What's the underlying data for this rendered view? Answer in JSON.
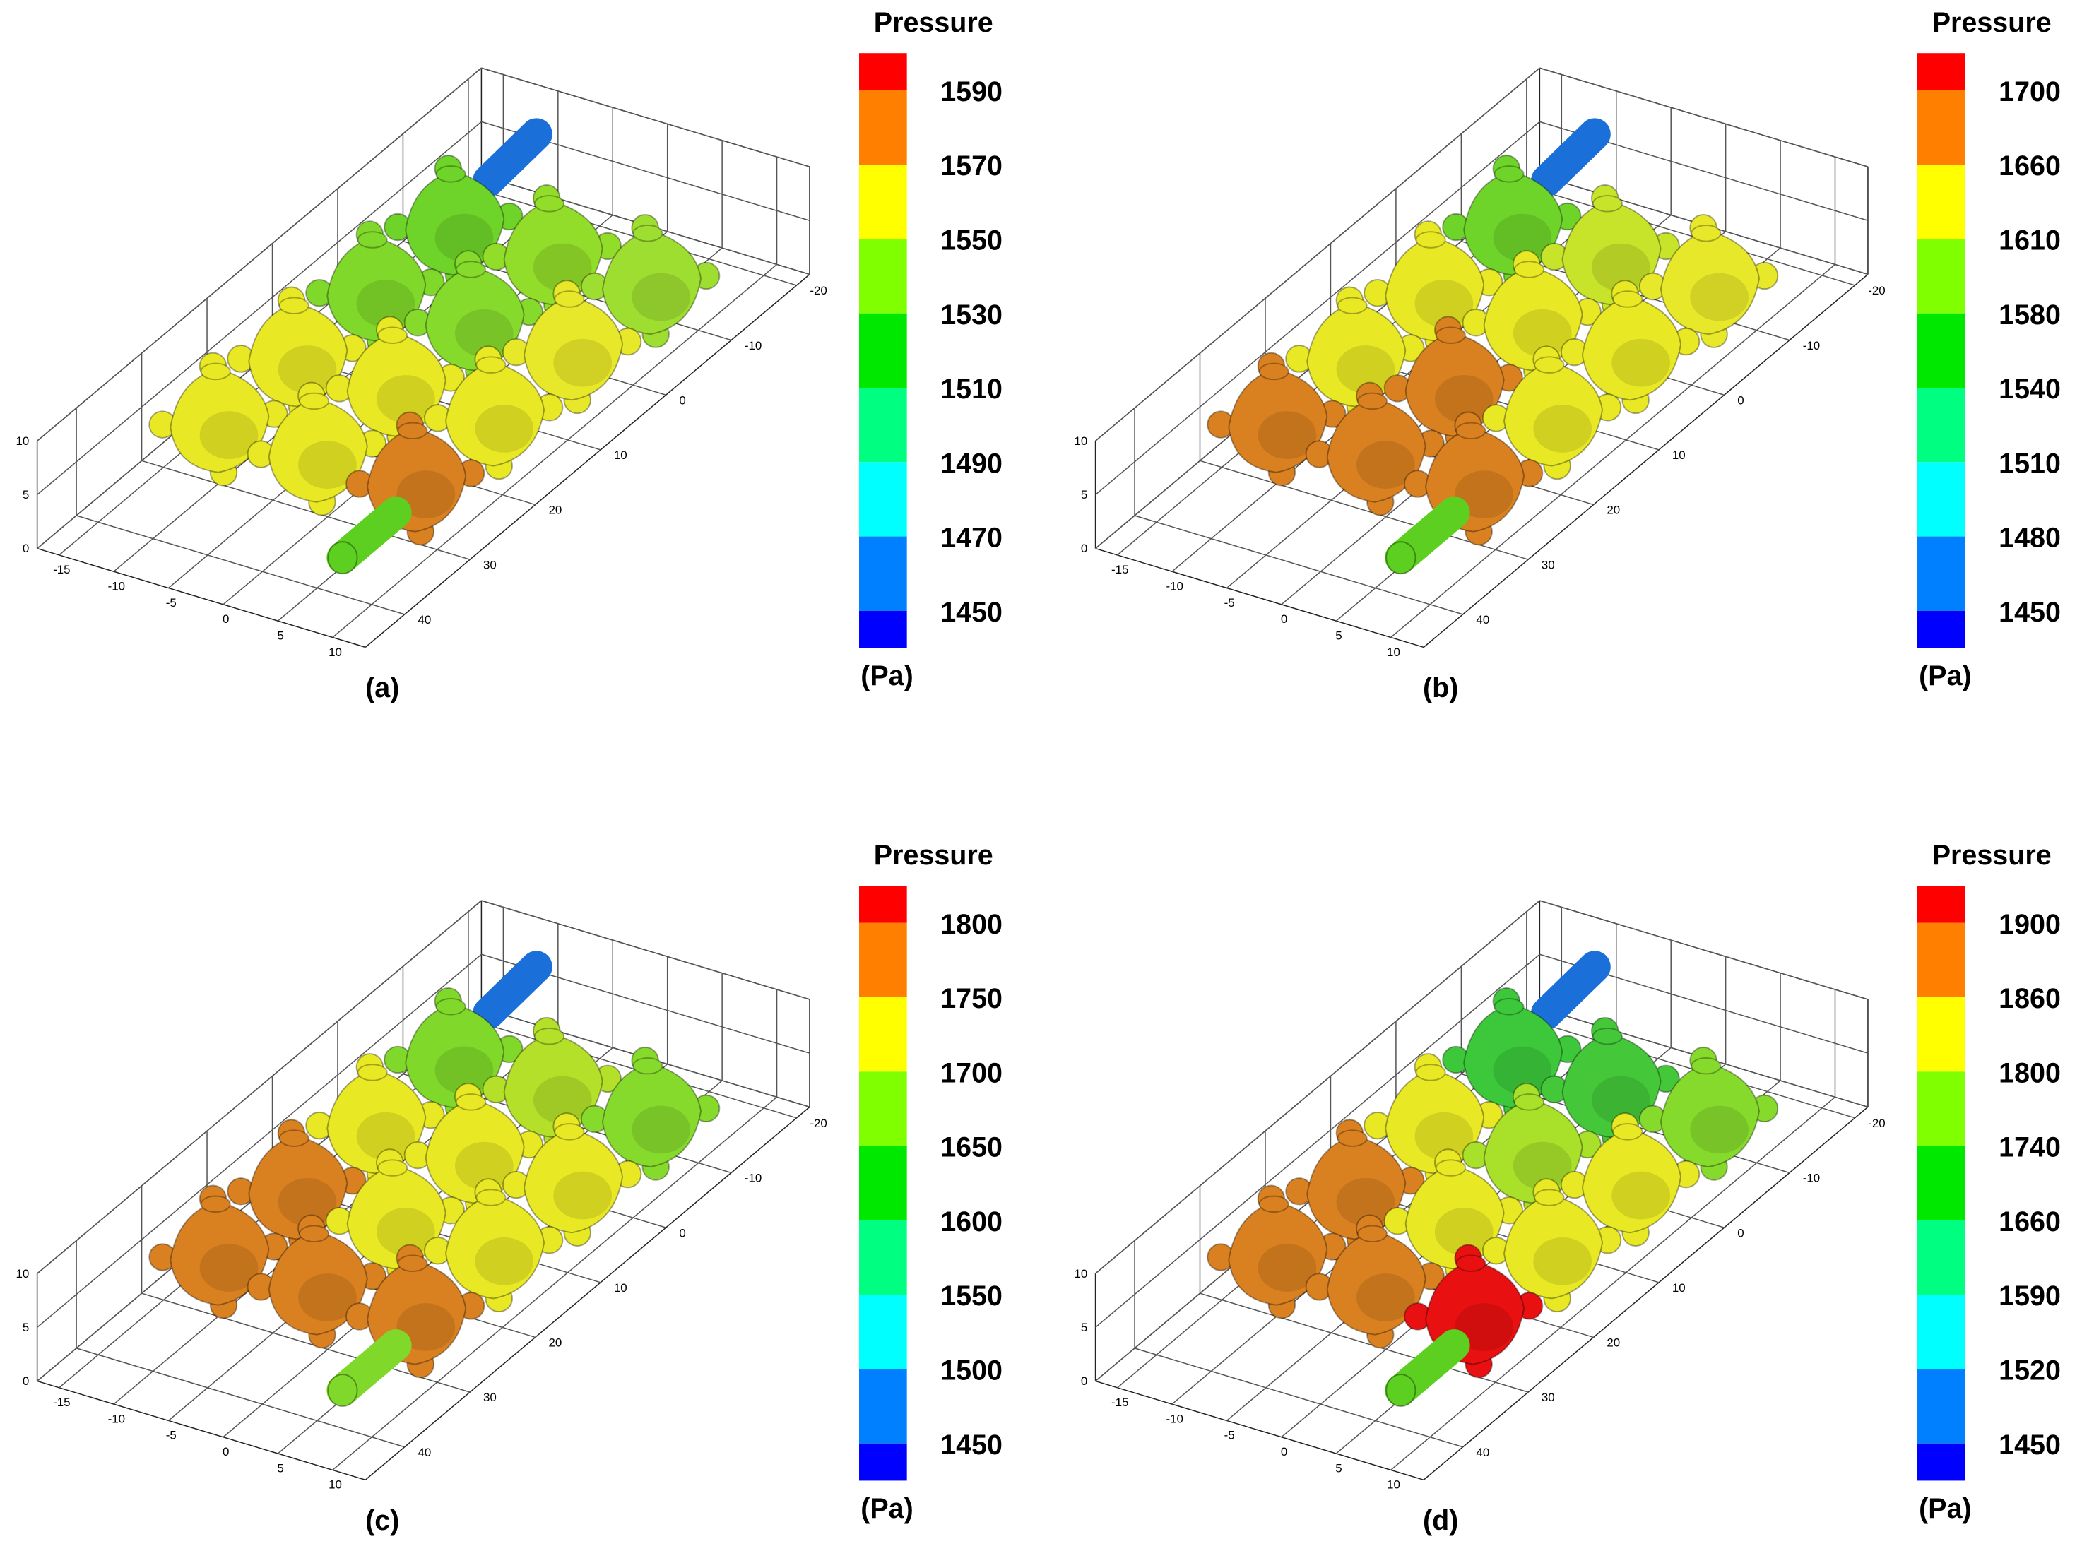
{
  "colormap": [
    "#ff0000",
    "#ff8000",
    "#ffff00",
    "#80ff00",
    "#00e800",
    "#00ff80",
    "#00ffff",
    "#0080ff",
    "#0000ff"
  ],
  "panels": [
    {
      "label": "(a)",
      "legend_title": "Pressure",
      "legend_unit": "(Pa)",
      "levels": [
        1590,
        1570,
        1550,
        1530,
        1510,
        1490,
        1470,
        1450
      ],
      "xticks": [
        -15,
        -10,
        -5,
        0,
        5,
        10
      ],
      "yticks": [
        -20,
        -10,
        0,
        10,
        20,
        30,
        40
      ],
      "zticks": [
        0,
        5,
        10
      ],
      "node_colors": [
        "#6fd42a",
        "#92dc2a",
        "#9ede30",
        "#7fd82a",
        "#86da2c",
        "#e8e82a",
        "#e8e824",
        "#e8e824",
        "#e8e824",
        "#e8e824",
        "#e8e824",
        "#d98020"
      ],
      "inlet_color": "#5ccf20",
      "outlet_color": "#1a6fd8"
    },
    {
      "label": "(b)",
      "legend_title": "Pressure",
      "legend_unit": "(Pa)",
      "levels": [
        1700,
        1660,
        1610,
        1580,
        1540,
        1510,
        1480,
        1450
      ],
      "xticks": [
        -15,
        -10,
        -5,
        0,
        5,
        10
      ],
      "yticks": [
        -20,
        -10,
        0,
        10,
        20,
        30,
        40
      ],
      "zticks": [
        0,
        5,
        10
      ],
      "node_colors": [
        "#6fd42a",
        "#c8e42a",
        "#e8e82a",
        "#e8e824",
        "#e8e824",
        "#e8e824",
        "#e8e824",
        "#d98020",
        "#e8e824",
        "#d98020",
        "#d98020",
        "#d98020"
      ],
      "inlet_color": "#5ccf20",
      "outlet_color": "#1a6fd8"
    },
    {
      "label": "(c)",
      "legend_title": "Pressure",
      "legend_unit": "(Pa)",
      "levels": [
        1800,
        1750,
        1700,
        1650,
        1600,
        1550,
        1500,
        1450
      ],
      "xticks": [
        -15,
        -10,
        -5,
        0,
        5,
        10
      ],
      "yticks": [
        -20,
        -10,
        0,
        10,
        20,
        30,
        40
      ],
      "zticks": [
        0,
        5,
        10
      ],
      "node_colors": [
        "#80d82a",
        "#b4e02a",
        "#86da2c",
        "#e8e824",
        "#e8e824",
        "#e8e824",
        "#d98020",
        "#e8e824",
        "#e8e824",
        "#d98020",
        "#d98020",
        "#d98020"
      ],
      "inlet_color": "#7fd82a",
      "outlet_color": "#1a6fd8"
    },
    {
      "label": "(d)",
      "legend_title": "Pressure",
      "legend_unit": "(Pa)",
      "levels": [
        1900,
        1860,
        1800,
        1740,
        1660,
        1590,
        1520,
        1450
      ],
      "xticks": [
        -15,
        -10,
        -5,
        0,
        5,
        10
      ],
      "yticks": [
        -20,
        -10,
        0,
        10,
        20,
        30,
        40
      ],
      "zticks": [
        0,
        5,
        10
      ],
      "node_colors": [
        "#3cc83a",
        "#44c83a",
        "#86da2c",
        "#e8e824",
        "#a8e02a",
        "#e8e824",
        "#d98020",
        "#e8e824",
        "#e8e824",
        "#d98020",
        "#d98020",
        "#e81010"
      ],
      "inlet_color": "#5ccf20",
      "outlet_color": "#1a6fd8"
    }
  ]
}
